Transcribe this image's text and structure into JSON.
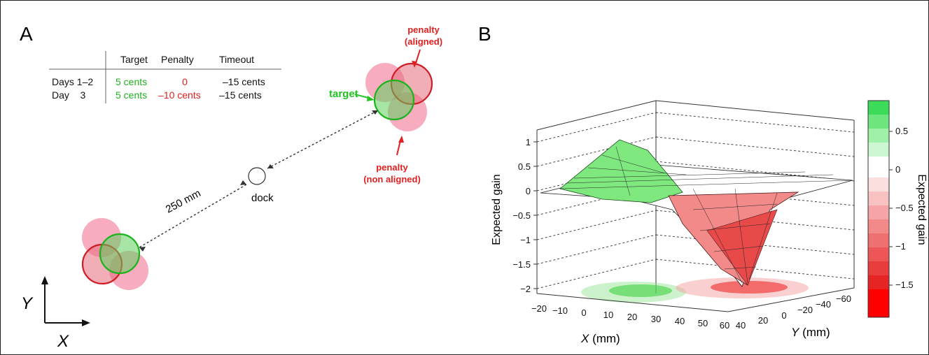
{
  "panel_a": {
    "label": "A",
    "table": {
      "headers": [
        "",
        "Target",
        "Penalty",
        "Timeout"
      ],
      "rows": [
        {
          "day": "Days 1–2",
          "target": "5 cents",
          "penalty": "0",
          "timeout": "–15 cents"
        },
        {
          "day": "Day    3",
          "target": "5 cents",
          "penalty": "–10 cents",
          "timeout": "–15 cents"
        }
      ]
    },
    "annotations": {
      "target": "target",
      "penalty_aligned": [
        "penalty",
        "(aligned)"
      ],
      "penalty_non_aligned": [
        "penalty",
        "(non aligned)"
      ],
      "dock": "dock",
      "distance": "250 mm"
    },
    "axes": {
      "x": "X",
      "y": "Y"
    }
  },
  "panel_b": {
    "label": "B",
    "z_axis_label": "Expected gain",
    "x_axis_label": "X (mm)",
    "y_axis_label": "Y (mm)",
    "z_ticks": [
      "1",
      "0.5",
      "0",
      "−0.5",
      "−1",
      "−1.5",
      "−2"
    ],
    "x_ticks": [
      "−20",
      "−10",
      "0",
      "10",
      "20",
      "30",
      "40",
      "50",
      "60"
    ],
    "y_ticks": [
      "40",
      "20",
      "0",
      "−20",
      "−40",
      "−60"
    ],
    "colorbar": {
      "label": "Expected gain",
      "ticks": [
        "0.5",
        "0",
        "−0.5",
        "−1",
        "−1.5"
      ]
    }
  },
  "colors": {
    "target": "#1db31d",
    "penalty": "#e0202a",
    "penalty_fill": "#f06a8a",
    "label_green": "#22c322",
    "label_red": "#e02020"
  }
}
